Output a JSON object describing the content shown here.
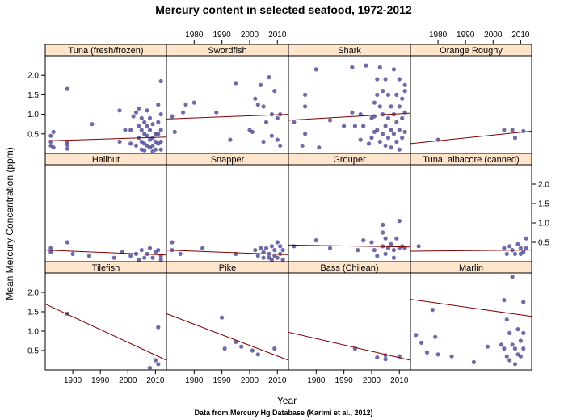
{
  "chart_data": {
    "type": "scatter",
    "title": "Mercury content in selected seafood, 1972-2012",
    "xlabel": "Year",
    "ylabel": "Mean Mercury Concentration (ppm)",
    "caption": "Data from Mercury Hg Database (Karimi et al., 2012)",
    "xlim": [
      1970,
      2014
    ],
    "ylim": [
      0,
      2.5
    ],
    "x_ticks": [
      1980,
      1990,
      2000,
      2010
    ],
    "y_ticks": [
      0.5,
      1.0,
      1.5,
      2.0
    ],
    "x_tick_labels": [
      "1980",
      "1990",
      "2000",
      "2010"
    ],
    "y_tick_labels": [
      "0.5",
      "1.0",
      "1.5",
      "2.0"
    ],
    "point_color": "#4b4594",
    "line_color": "#800000",
    "strip_color": "#ffe5cc",
    "panels": [
      {
        "name": "Tuna (fresh/frozen)",
        "trend": [
          0.32,
          0.42
        ],
        "points": [
          [
            1972,
            0.45
          ],
          [
            1972,
            0.3
          ],
          [
            1972,
            0.2
          ],
          [
            1973,
            0.55
          ],
          [
            1973,
            0.15
          ],
          [
            1978,
            0.12
          ],
          [
            1978,
            0.22
          ],
          [
            1978,
            0.3
          ],
          [
            1978,
            1.65
          ],
          [
            1987,
            0.75
          ],
          [
            1997,
            1.1
          ],
          [
            1997,
            0.3
          ],
          [
            1999,
            0.6
          ],
          [
            2001,
            0.6
          ],
          [
            2001,
            0.25
          ],
          [
            2002,
            0.95
          ],
          [
            2003,
            1.05
          ],
          [
            2003,
            0.2
          ],
          [
            2004,
            1.15
          ],
          [
            2004,
            0.7
          ],
          [
            2004,
            0.4
          ],
          [
            2005,
            0.9
          ],
          [
            2005,
            0.6
          ],
          [
            2005,
            0.3
          ],
          [
            2005,
            0.1
          ],
          [
            2006,
            0.8
          ],
          [
            2006,
            0.5
          ],
          [
            2006,
            0.25
          ],
          [
            2006,
            0.08
          ],
          [
            2007,
            1.1
          ],
          [
            2007,
            0.7
          ],
          [
            2007,
            0.45
          ],
          [
            2007,
            0.2
          ],
          [
            2008,
            0.9
          ],
          [
            2008,
            0.6
          ],
          [
            2008,
            0.35
          ],
          [
            2008,
            0.15
          ],
          [
            2009,
            0.75
          ],
          [
            2009,
            0.4
          ],
          [
            2009,
            0.2
          ],
          [
            2009,
            0.05
          ],
          [
            2010,
            0.5
          ],
          [
            2010,
            0.3
          ],
          [
            2010,
            0.1
          ],
          [
            2011,
            1.25
          ],
          [
            2011,
            0.8
          ],
          [
            2011,
            0.5
          ],
          [
            2011,
            0.25
          ],
          [
            2012,
            1.85
          ],
          [
            2012,
            1.0
          ],
          [
            2012,
            0.6
          ],
          [
            2012,
            0.3
          ],
          [
            2012,
            0.1
          ]
        ]
      },
      {
        "name": "Swordfish",
        "trend": [
          0.88,
          1.0
        ],
        "points": [
          [
            1972,
            0.95
          ],
          [
            1973,
            0.55
          ],
          [
            1976,
            1.05
          ],
          [
            1977,
            1.25
          ],
          [
            1980,
            1.3
          ],
          [
            1988,
            1.05
          ],
          [
            1993,
            0.35
          ],
          [
            1995,
            1.8
          ],
          [
            2000,
            0.6
          ],
          [
            2001,
            0.55
          ],
          [
            2002,
            1.4
          ],
          [
            2003,
            1.25
          ],
          [
            2004,
            1.75
          ],
          [
            2005,
            0.3
          ],
          [
            2005,
            1.2
          ],
          [
            2006,
            0.8
          ],
          [
            2007,
            1.95
          ],
          [
            2008,
            1.0
          ],
          [
            2008,
            0.45
          ],
          [
            2009,
            1.6
          ],
          [
            2010,
            0.35
          ],
          [
            2010,
            0.9
          ],
          [
            2011,
            1.0
          ],
          [
            2011,
            0.2
          ]
        ]
      },
      {
        "name": "Shark",
        "trend": [
          0.85,
          1.03
        ],
        "points": [
          [
            1972,
            0.8
          ],
          [
            1975,
            0.2
          ],
          [
            1976,
            0.5
          ],
          [
            1976,
            1.2
          ],
          [
            1976,
            1.5
          ],
          [
            1980,
            2.15
          ],
          [
            1981,
            0.15
          ],
          [
            1985,
            0.85
          ],
          [
            1990,
            0.7
          ],
          [
            1993,
            1.05
          ],
          [
            1993,
            2.2
          ],
          [
            1994,
            0.7
          ],
          [
            1996,
            1.0
          ],
          [
            1996,
            0.35
          ],
          [
            1997,
            0.7
          ],
          [
            1998,
            2.25
          ],
          [
            1999,
            0.25
          ],
          [
            2000,
            0.9
          ],
          [
            2000,
            0.4
          ],
          [
            2001,
            0.95
          ],
          [
            2001,
            0.55
          ],
          [
            2001,
            1.3
          ],
          [
            2002,
            1.9
          ],
          [
            2002,
            1.5
          ],
          [
            2002,
            0.6
          ],
          [
            2003,
            1.2
          ],
          [
            2003,
            0.3
          ],
          [
            2003,
            2.2
          ],
          [
            2004,
            1.6
          ],
          [
            2004,
            1.0
          ],
          [
            2004,
            0.5
          ],
          [
            2005,
            1.9
          ],
          [
            2005,
            0.7
          ],
          [
            2005,
            0.2
          ],
          [
            2006,
            1.5
          ],
          [
            2006,
            0.9
          ],
          [
            2006,
            0.4
          ],
          [
            2007,
            1.2
          ],
          [
            2007,
            0.6
          ],
          [
            2007,
            0.15
          ],
          [
            2008,
            2.15
          ],
          [
            2008,
            1.0
          ],
          [
            2008,
            0.5
          ],
          [
            2009,
            1.5
          ],
          [
            2009,
            0.8
          ],
          [
            2009,
            0.3
          ],
          [
            2010,
            1.9
          ],
          [
            2010,
            1.2
          ],
          [
            2010,
            0.6
          ],
          [
            2010,
            0.1
          ],
          [
            2011,
            1.4
          ],
          [
            2011,
            0.9
          ],
          [
            2011,
            0.4
          ],
          [
            2012,
            1.75
          ],
          [
            2012,
            1.6
          ],
          [
            2012,
            1.05
          ],
          [
            2012,
            0.55
          ]
        ]
      },
      {
        "name": "Orange Roughy",
        "trend": [
          0.25,
          0.57
        ],
        "points": [
          [
            1980,
            0.35
          ],
          [
            2004,
            0.6
          ],
          [
            2007,
            0.6
          ],
          [
            2008,
            0.4
          ],
          [
            2011,
            0.57
          ]
        ]
      },
      {
        "name": "Halibut",
        "trend": [
          0.3,
          0.17
        ],
        "points": [
          [
            1972,
            0.35
          ],
          [
            1972,
            0.25
          ],
          [
            1978,
            0.5
          ],
          [
            1980,
            0.2
          ],
          [
            1986,
            0.15
          ],
          [
            1995,
            0.1
          ],
          [
            1998,
            0.25
          ],
          [
            2001,
            0.15
          ],
          [
            2003,
            0.2
          ],
          [
            2004,
            0.05
          ],
          [
            2005,
            0.3
          ],
          [
            2006,
            0.1
          ],
          [
            2007,
            0.2
          ],
          [
            2008,
            0.35
          ],
          [
            2009,
            0.1
          ],
          [
            2010,
            0.25
          ],
          [
            2011,
            0.3
          ],
          [
            2012,
            0.15
          ],
          [
            2012,
            0.05
          ]
        ]
      },
      {
        "name": "Snapper",
        "trend": [
          0.3,
          0.18
        ],
        "points": [
          [
            1972,
            0.5
          ],
          [
            1972,
            0.3
          ],
          [
            1975,
            0.2
          ],
          [
            1983,
            0.35
          ],
          [
            1995,
            0.2
          ],
          [
            2002,
            0.3
          ],
          [
            2003,
            0.15
          ],
          [
            2004,
            0.35
          ],
          [
            2005,
            0.1
          ],
          [
            2005,
            0.25
          ],
          [
            2006,
            0.35
          ],
          [
            2007,
            0.1
          ],
          [
            2007,
            0.2
          ],
          [
            2008,
            0.4
          ],
          [
            2008,
            0.05
          ],
          [
            2009,
            0.3
          ],
          [
            2009,
            0.15
          ],
          [
            2010,
            0.5
          ],
          [
            2010,
            0.1
          ],
          [
            2011,
            0.4
          ],
          [
            2011,
            0.2
          ],
          [
            2012,
            0.3
          ],
          [
            2012,
            0.05
          ]
        ]
      },
      {
        "name": "Grouper",
        "trend": [
          0.43,
          0.38
        ],
        "points": [
          [
            1972,
            0.4
          ],
          [
            1980,
            0.55
          ],
          [
            1985,
            0.35
          ],
          [
            1995,
            0.3
          ],
          [
            1997,
            0.55
          ],
          [
            2000,
            0.5
          ],
          [
            2001,
            0.3
          ],
          [
            2002,
            0.15
          ],
          [
            2004,
            0.95
          ],
          [
            2004,
            0.75
          ],
          [
            2004,
            0.4
          ],
          [
            2005,
            0.6
          ],
          [
            2005,
            0.2
          ],
          [
            2006,
            0.35
          ],
          [
            2007,
            0.45
          ],
          [
            2008,
            0.3
          ],
          [
            2008,
            0.1
          ],
          [
            2009,
            0.6
          ],
          [
            2010,
            1.05
          ],
          [
            2010,
            0.35
          ],
          [
            2011,
            0.4
          ],
          [
            2012,
            0.35
          ]
        ]
      },
      {
        "name": "Tuna, albacore (canned)",
        "trend": [
          0.27,
          0.3
        ],
        "points": [
          [
            1973,
            0.4
          ],
          [
            2004,
            0.35
          ],
          [
            2005,
            0.2
          ],
          [
            2006,
            0.4
          ],
          [
            2007,
            0.3
          ],
          [
            2008,
            0.2
          ],
          [
            2009,
            0.45
          ],
          [
            2010,
            0.35
          ],
          [
            2010,
            0.2
          ],
          [
            2011,
            0.25
          ],
          [
            2012,
            0.6
          ],
          [
            2012,
            0.35
          ]
        ]
      },
      {
        "name": "Tilefish",
        "trend": [
          1.7,
          0.25
        ],
        "points": [
          [
            1978,
            1.45
          ],
          [
            2008,
            0.05
          ],
          [
            2010,
            0.25
          ],
          [
            2011,
            0.15
          ],
          [
            2011,
            1.1
          ]
        ]
      },
      {
        "name": "Pike",
        "trend": [
          1.45,
          0.25
        ],
        "points": [
          [
            1990,
            1.35
          ],
          [
            1991,
            0.55
          ],
          [
            1995,
            0.72
          ],
          [
            1997,
            0.6
          ],
          [
            2001,
            0.5
          ],
          [
            2003,
            0.4
          ],
          [
            2009,
            0.55
          ]
        ]
      },
      {
        "name": "Bass (Chilean)",
        "trend": [
          0.97,
          0.25
        ],
        "points": [
          [
            1994,
            0.55
          ],
          [
            2002,
            0.32
          ],
          [
            2005,
            0.38
          ],
          [
            2005,
            0.28
          ],
          [
            2010,
            0.35
          ]
        ]
      },
      {
        "name": "Marlin",
        "trend": [
          1.82,
          1.38
        ],
        "points": [
          [
            1972,
            0.9
          ],
          [
            1974,
            0.7
          ],
          [
            1976,
            0.45
          ],
          [
            1978,
            1.55
          ],
          [
            1979,
            0.85
          ],
          [
            1980,
            0.4
          ],
          [
            1985,
            0.35
          ],
          [
            1993,
            0.2
          ],
          [
            1998,
            0.6
          ],
          [
            2003,
            0.65
          ],
          [
            2004,
            0.55
          ],
          [
            2004,
            1.8
          ],
          [
            2005,
            0.35
          ],
          [
            2005,
            1.3
          ],
          [
            2006,
            0.95
          ],
          [
            2006,
            0.25
          ],
          [
            2007,
            2.4
          ],
          [
            2007,
            0.65
          ],
          [
            2008,
            0.55
          ],
          [
            2008,
            0.15
          ],
          [
            2009,
            0.4
          ],
          [
            2009,
            1.05
          ],
          [
            2010,
            0.75
          ],
          [
            2010,
            0.35
          ],
          [
            2011,
            1.75
          ],
          [
            2011,
            0.95
          ],
          [
            2011,
            0.55
          ]
        ]
      }
    ]
  }
}
